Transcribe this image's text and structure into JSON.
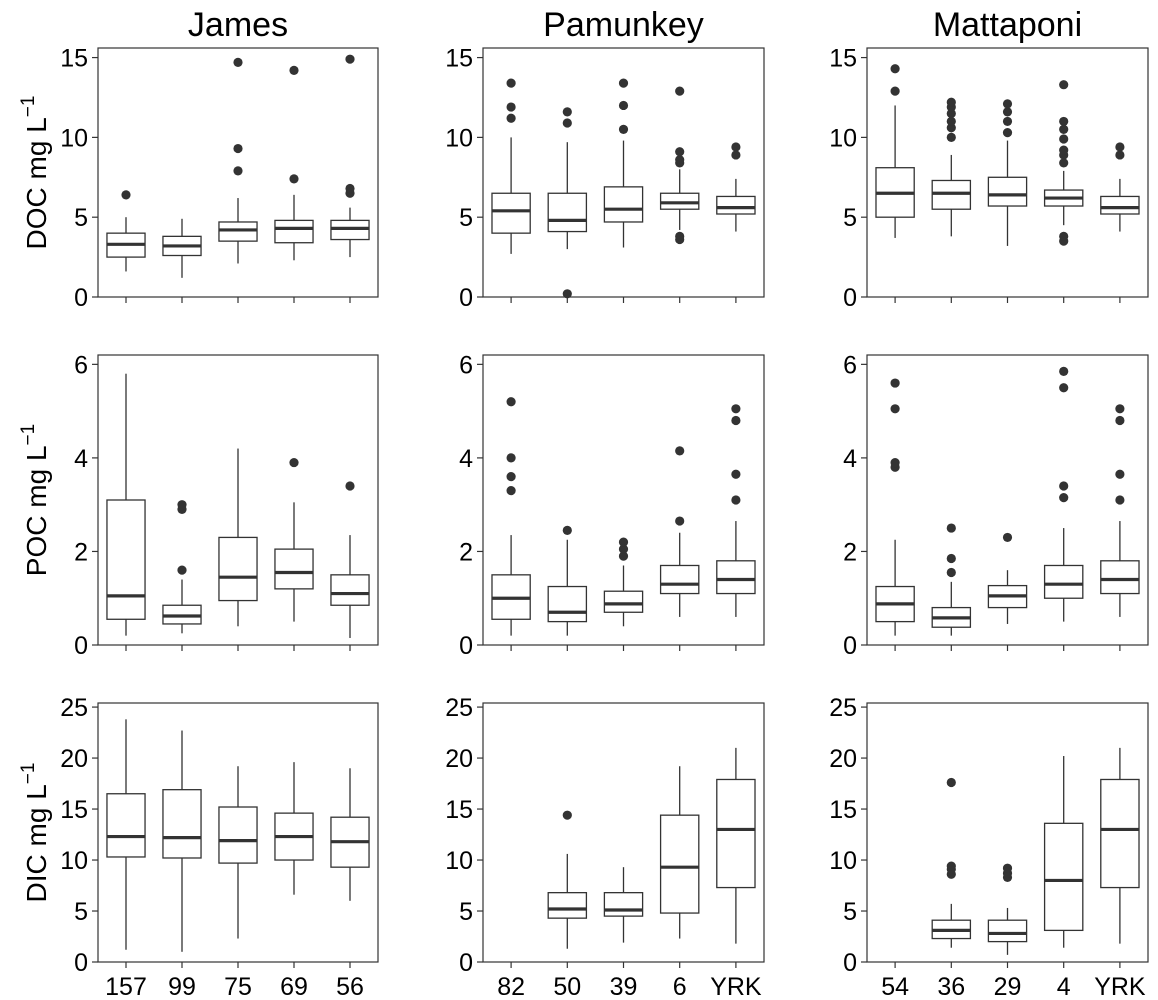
{
  "chart_data": {
    "type": "box",
    "grid": false,
    "columns": [
      "James",
      "Pamunkey",
      "Mattaponi"
    ],
    "rows": [
      {
        "ylabel": "DOC  mg L",
        "unit_exponent": "−1",
        "ylim": [
          0,
          15.6
        ],
        "yticks": [
          0,
          5,
          10,
          15
        ]
      },
      {
        "ylabel": "POC  mg L",
        "unit_exponent": "−1",
        "ylim": [
          0,
          6.2
        ],
        "yticks": [
          0,
          2,
          4,
          6
        ]
      },
      {
        "ylabel": "DIC  mg L",
        "unit_exponent": "−1",
        "ylim": [
          0,
          25.4
        ],
        "yticks": [
          0,
          5,
          10,
          15,
          20,
          25
        ]
      }
    ],
    "tick_labels": {
      "James": [
        "157",
        "99",
        "75",
        "69",
        "56"
      ],
      "Pamunkey": [
        "82",
        "50",
        "39",
        "6",
        "YRK"
      ],
      "Mattaponi": [
        "54",
        "36",
        "29",
        "4",
        "YRK"
      ]
    },
    "panels": [
      {
        "row": 0,
        "col": 0,
        "boxes": [
          {
            "category": "157",
            "min": 1.6,
            "q1": 2.5,
            "median": 3.3,
            "q3": 4.0,
            "max": 5.0,
            "outliers": [
              6.4
            ]
          },
          {
            "category": "99",
            "min": 1.2,
            "q1": 2.6,
            "median": 3.2,
            "q3": 3.8,
            "max": 4.9,
            "outliers": []
          },
          {
            "category": "75",
            "min": 2.1,
            "q1": 3.5,
            "median": 4.2,
            "q3": 4.7,
            "max": 6.2,
            "outliers": [
              7.9,
              9.3,
              14.7
            ]
          },
          {
            "category": "69",
            "min": 2.3,
            "q1": 3.4,
            "median": 4.3,
            "q3": 4.8,
            "max": 6.4,
            "outliers": [
              7.4,
              14.2
            ]
          },
          {
            "category": "56",
            "min": 2.5,
            "q1": 3.6,
            "median": 4.3,
            "q3": 4.8,
            "max": 5.6,
            "outliers": [
              6.5,
              6.8,
              14.9
            ]
          }
        ]
      },
      {
        "row": 0,
        "col": 1,
        "boxes": [
          {
            "category": "82",
            "min": 2.7,
            "q1": 4.0,
            "median": 5.4,
            "q3": 6.5,
            "max": 10.0,
            "outliers": [
              11.2,
              11.9,
              13.4
            ]
          },
          {
            "category": "50",
            "min": 3.0,
            "q1": 4.1,
            "median": 4.8,
            "q3": 6.5,
            "max": 9.7,
            "outliers": [
              0.2,
              10.9,
              11.6
            ]
          },
          {
            "category": "39",
            "min": 3.1,
            "q1": 4.7,
            "median": 5.5,
            "q3": 6.9,
            "max": 9.8,
            "outliers": [
              10.5,
              12.0,
              13.4
            ]
          },
          {
            "category": "6",
            "min": 4.2,
            "q1": 5.5,
            "median": 5.9,
            "q3": 6.5,
            "max": 8.0,
            "outliers": [
              3.6,
              3.8,
              8.4,
              8.6,
              9.1,
              12.9
            ]
          },
          {
            "category": "YRK",
            "min": 4.1,
            "q1": 5.2,
            "median": 5.6,
            "q3": 6.3,
            "max": 7.4,
            "outliers": [
              8.9,
              9.4
            ]
          }
        ]
      },
      {
        "row": 0,
        "col": 2,
        "boxes": [
          {
            "category": "54",
            "min": 3.7,
            "q1": 5.0,
            "median": 6.5,
            "q3": 8.1,
            "max": 12.0,
            "outliers": [
              12.9,
              14.3
            ]
          },
          {
            "category": "36",
            "min": 3.8,
            "q1": 5.5,
            "median": 6.5,
            "q3": 7.3,
            "max": 8.9,
            "outliers": [
              10.0,
              10.6,
              11.0,
              11.5,
              11.9,
              12.2
            ]
          },
          {
            "category": "29",
            "min": 3.2,
            "q1": 5.7,
            "median": 6.4,
            "q3": 7.5,
            "max": 9.8,
            "outliers": [
              10.3,
              11.0,
              11.6,
              12.1
            ]
          },
          {
            "category": "4",
            "min": 4.5,
            "q1": 5.7,
            "median": 6.2,
            "q3": 6.7,
            "max": 7.9,
            "outliers": [
              3.5,
              3.8,
              8.4,
              8.9,
              9.2,
              9.9,
              10.5,
              11.0,
              13.3
            ]
          },
          {
            "category": "YRK",
            "min": 4.1,
            "q1": 5.2,
            "median": 5.6,
            "q3": 6.3,
            "max": 7.4,
            "outliers": [
              8.9,
              9.4
            ]
          }
        ]
      },
      {
        "row": 1,
        "col": 0,
        "boxes": [
          {
            "category": "157",
            "min": 0.2,
            "q1": 0.55,
            "median": 1.05,
            "q3": 3.1,
            "max": 5.8,
            "outliers": []
          },
          {
            "category": "99",
            "min": 0.25,
            "q1": 0.45,
            "median": 0.62,
            "q3": 0.85,
            "max": 1.4,
            "outliers": [
              1.6,
              2.9,
              3.0
            ]
          },
          {
            "category": "75",
            "min": 0.4,
            "q1": 0.95,
            "median": 1.45,
            "q3": 2.3,
            "max": 4.2,
            "outliers": []
          },
          {
            "category": "69",
            "min": 0.5,
            "q1": 1.2,
            "median": 1.55,
            "q3": 2.05,
            "max": 3.05,
            "outliers": [
              3.9
            ]
          },
          {
            "category": "56",
            "min": 0.15,
            "q1": 0.85,
            "median": 1.1,
            "q3": 1.5,
            "max": 2.35,
            "outliers": [
              3.4
            ]
          }
        ]
      },
      {
        "row": 1,
        "col": 1,
        "boxes": [
          {
            "category": "82",
            "min": 0.2,
            "q1": 0.55,
            "median": 1.0,
            "q3": 1.5,
            "max": 2.35,
            "outliers": [
              3.3,
              3.6,
              4.0,
              5.2
            ]
          },
          {
            "category": "50",
            "min": 0.2,
            "q1": 0.5,
            "median": 0.7,
            "q3": 1.25,
            "max": 2.25,
            "outliers": [
              2.45
            ]
          },
          {
            "category": "39",
            "min": 0.4,
            "q1": 0.7,
            "median": 0.88,
            "q3": 1.15,
            "max": 1.7,
            "outliers": [
              1.9,
              2.05,
              2.2
            ]
          },
          {
            "category": "6",
            "min": 0.6,
            "q1": 1.1,
            "median": 1.3,
            "q3": 1.7,
            "max": 2.4,
            "outliers": [
              2.65,
              4.15
            ]
          },
          {
            "category": "YRK",
            "min": 0.6,
            "q1": 1.1,
            "median": 1.4,
            "q3": 1.8,
            "max": 2.65,
            "outliers": [
              3.1,
              3.65,
              4.8,
              5.05
            ]
          }
        ]
      },
      {
        "row": 1,
        "col": 2,
        "boxes": [
          {
            "category": "54",
            "min": 0.2,
            "q1": 0.5,
            "median": 0.88,
            "q3": 1.25,
            "max": 2.25,
            "outliers": [
              3.8,
              3.9,
              5.05,
              5.6
            ]
          },
          {
            "category": "36",
            "min": 0.2,
            "q1": 0.38,
            "median": 0.58,
            "q3": 0.8,
            "max": 1.35,
            "outliers": [
              1.55,
              1.85,
              2.5
            ]
          },
          {
            "category": "29",
            "min": 0.45,
            "q1": 0.8,
            "median": 1.05,
            "q3": 1.27,
            "max": 1.6,
            "outliers": [
              2.3
            ]
          },
          {
            "category": "4",
            "min": 0.5,
            "q1": 1.0,
            "median": 1.3,
            "q3": 1.7,
            "max": 2.5,
            "outliers": [
              3.15,
              3.4,
              5.5,
              5.85
            ]
          },
          {
            "category": "YRK",
            "min": 0.6,
            "q1": 1.1,
            "median": 1.4,
            "q3": 1.8,
            "max": 2.65,
            "outliers": [
              3.1,
              3.65,
              4.8,
              5.05
            ]
          }
        ]
      },
      {
        "row": 2,
        "col": 0,
        "boxes": [
          {
            "category": "157",
            "min": 1.2,
            "q1": 10.3,
            "median": 12.3,
            "q3": 16.5,
            "max": 23.8,
            "outliers": []
          },
          {
            "category": "99",
            "min": 1.0,
            "q1": 10.2,
            "median": 12.2,
            "q3": 16.9,
            "max": 22.7,
            "outliers": []
          },
          {
            "category": "75",
            "min": 2.3,
            "q1": 9.7,
            "median": 11.9,
            "q3": 15.2,
            "max": 19.2,
            "outliers": []
          },
          {
            "category": "69",
            "min": 6.6,
            "q1": 10.0,
            "median": 12.3,
            "q3": 14.6,
            "max": 19.6,
            "outliers": []
          },
          {
            "category": "56",
            "min": 6.0,
            "q1": 9.3,
            "median": 11.8,
            "q3": 14.2,
            "max": 19.0,
            "outliers": []
          }
        ]
      },
      {
        "row": 2,
        "col": 1,
        "boxes": [
          {
            "category": "50",
            "min": 1.3,
            "q1": 4.3,
            "median": 5.2,
            "q3": 6.8,
            "max": 10.6,
            "outliers": [
              14.4
            ]
          },
          {
            "category": "39",
            "min": 1.9,
            "q1": 4.5,
            "median": 5.1,
            "q3": 6.8,
            "max": 9.3,
            "outliers": []
          },
          {
            "category": "6",
            "min": 2.3,
            "q1": 4.8,
            "median": 9.3,
            "q3": 14.4,
            "max": 19.2,
            "outliers": []
          },
          {
            "category": "YRK",
            "min": 1.8,
            "q1": 7.3,
            "median": 13.0,
            "q3": 17.9,
            "max": 21.0,
            "outliers": []
          }
        ]
      },
      {
        "row": 2,
        "col": 2,
        "boxes": [
          {
            "category": "36",
            "min": 1.4,
            "q1": 2.3,
            "median": 3.1,
            "q3": 4.1,
            "max": 5.7,
            "outliers": [
              8.6,
              9.1,
              9.4,
              17.6
            ]
          },
          {
            "category": "29",
            "min": 0.7,
            "q1": 2.0,
            "median": 2.8,
            "q3": 4.1,
            "max": 5.3,
            "outliers": [
              8.3,
              8.7,
              9.2
            ]
          },
          {
            "category": "4",
            "min": 1.4,
            "q1": 3.1,
            "median": 8.0,
            "q3": 13.6,
            "max": 20.2,
            "outliers": []
          },
          {
            "category": "YRK",
            "min": 1.8,
            "q1": 7.3,
            "median": 13.0,
            "q3": 17.9,
            "max": 21.0,
            "outliers": []
          }
        ]
      }
    ]
  }
}
